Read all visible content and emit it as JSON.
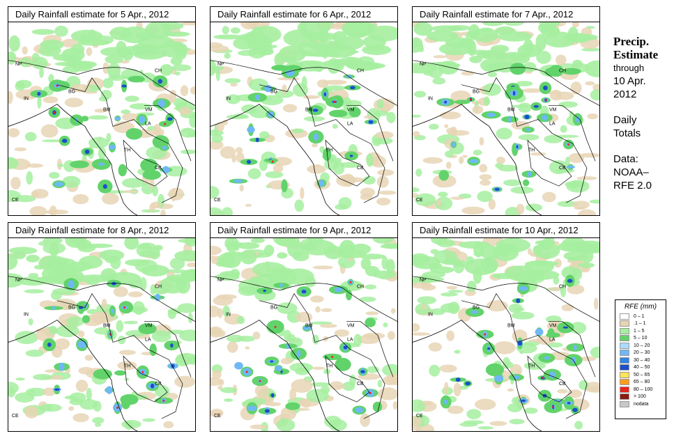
{
  "panels": [
    {
      "title": "Daily Rainfall estimate for  5 Apr., 2012"
    },
    {
      "title": "Daily Rainfall estimate for  6 Apr., 2012"
    },
    {
      "title": "Daily Rainfall estimate for  7 Apr., 2012"
    },
    {
      "title": "Daily Rainfall estimate for  8 Apr., 2012"
    },
    {
      "title": "Daily Rainfall estimate for  9 Apr., 2012"
    },
    {
      "title": "Daily Rainfall estimate for  10 Apr., 2012"
    }
  ],
  "country_labels": [
    "NP",
    "CH",
    "IN",
    "BG",
    "BM",
    "VM",
    "LA",
    "TH",
    "CB",
    "CE"
  ],
  "side_text": {
    "heading1": "Precip.",
    "heading2": "Estimate",
    "through": "through",
    "date1": "10 Apr.",
    "date2": "2012",
    "daily1": "Daily",
    "daily2": "Totals",
    "data1": "Data:",
    "data2": "NOAA–",
    "data3": "RFE 2.0"
  },
  "legend": {
    "title": "RFE (mm)",
    "items": [
      {
        "label": "0 – 1",
        "color": "#ffffff"
      },
      {
        "label": ".1 – 1",
        "color": "#e8d5b5"
      },
      {
        "label": "1 – 5",
        "color": "#a6eea0"
      },
      {
        "label": "5 – 10",
        "color": "#62d36b"
      },
      {
        "label": "10 – 20",
        "color": "#a9dcff"
      },
      {
        "label": "20 – 30",
        "color": "#6fb8f5"
      },
      {
        "label": "30 – 40",
        "color": "#2f84e6"
      },
      {
        "label": "40 – 50",
        "color": "#1a4fc9"
      },
      {
        "label": "50 – 65",
        "color": "#ffe35a"
      },
      {
        "label": "65 – 80",
        "color": "#ff9c1e"
      },
      {
        "label": "80 – 100",
        "color": "#e8251a"
      },
      {
        "label": "> 100",
        "color": "#8b1a12"
      },
      {
        "label": "nodata",
        "color": "#c8c8c8"
      }
    ]
  }
}
